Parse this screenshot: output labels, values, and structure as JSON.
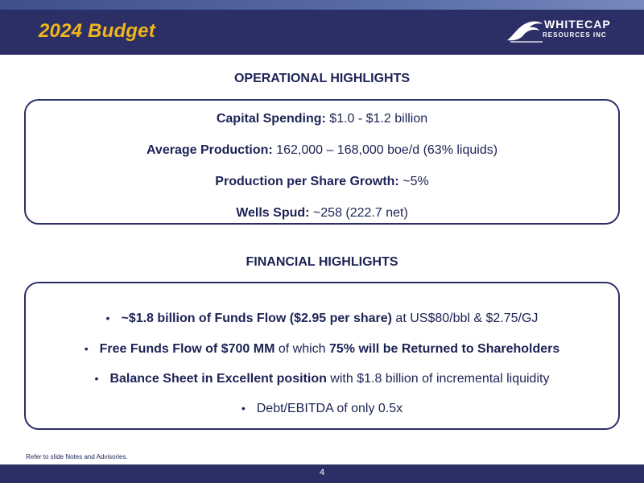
{
  "header": {
    "title": "2024 Budget",
    "logo": {
      "name": "WHITECAP",
      "sub": "RESOURCES INC",
      "icon": "wave-icon"
    }
  },
  "operational": {
    "heading": "OPERATIONAL HIGHLIGHTS",
    "items": [
      {
        "label": "Capital Spending:",
        "value": "$1.0 - $1.2 billion"
      },
      {
        "label": "Average Production:",
        "value": "162,000 – 168,000 boe/d (63% liquids)"
      },
      {
        "label": "Production per Share Growth:",
        "value": "~5%"
      },
      {
        "label": "Wells Spud:",
        "value": "~258 (222.7 net)"
      }
    ]
  },
  "financial": {
    "heading": "FINANCIAL HIGHLIGHTS",
    "bullet": "•",
    "items": [
      {
        "bold": "~$1.8 billion of Funds Flow ($2.95 per share)",
        "rest": " at US$80/bbl & $2.75/GJ"
      },
      {
        "bold": "Free Funds Flow of $700 MM",
        "mid": " of which ",
        "bold2": "75% will be Returned to Shareholders"
      },
      {
        "bold": "Balance Sheet in Excellent position",
        "rest": " with $1.8 billion of incremental liquidity"
      },
      {
        "rest": "Debt/EBITDA of only 0.5x"
      }
    ]
  },
  "footer": {
    "note": "Refer to slide Notes and Advisories.",
    "page_number": "4"
  },
  "colors": {
    "navy": "#2b2f66",
    "title_gold": "#f2b51c",
    "text": "#1c2355"
  }
}
